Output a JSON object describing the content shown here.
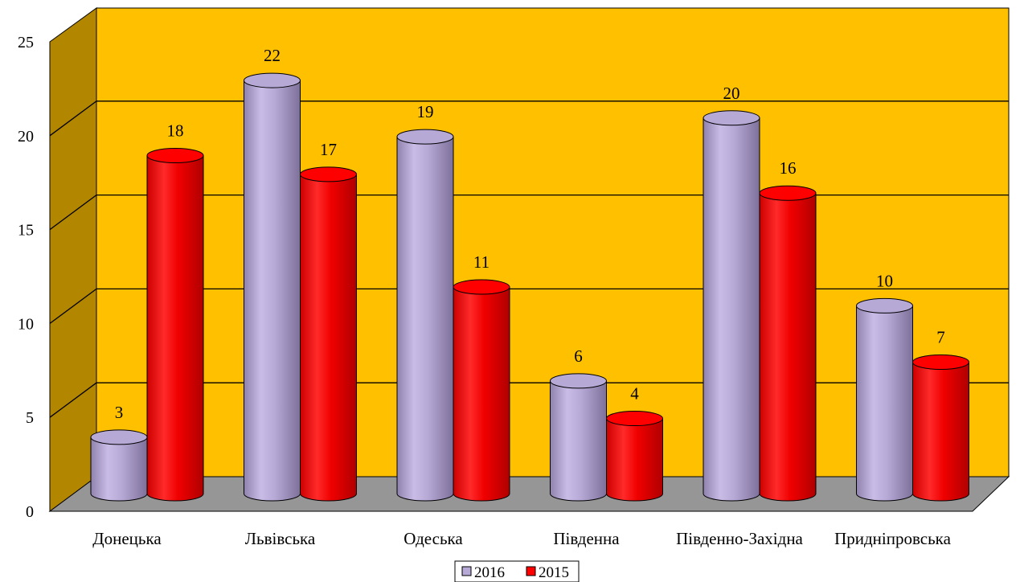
{
  "chart_data": {
    "type": "bar",
    "style": "3d-cylinder",
    "categories": [
      "Донецька",
      "Львівська",
      "Одеська",
      "Південна",
      "Південно-Західна",
      "Придніпровська"
    ],
    "series": [
      {
        "name": "2016",
        "values": [
          3,
          22,
          19,
          6,
          20,
          10
        ],
        "color": "#b7a9d6"
      },
      {
        "name": "2015",
        "values": [
          18,
          17,
          11,
          4,
          16,
          7
        ],
        "color": "#ff0000"
      }
    ],
    "yticks": [
      "0",
      "5",
      "10",
      "15",
      "20",
      "25"
    ],
    "ylim": [
      0,
      25
    ],
    "grid": true,
    "legend_position": "bottom",
    "background_color": "#ffc000",
    "floor_color": "#969696",
    "side_wall_color": "#b38600"
  }
}
